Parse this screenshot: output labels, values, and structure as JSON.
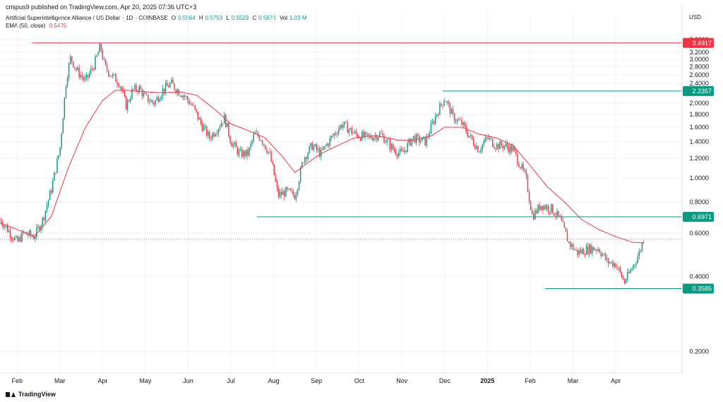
{
  "header": {
    "publisher": "crispus9 published on TradingView.com, Apr 20, 2025 07:36 UTC+3",
    "pair": "Artificial Superintelligence Alliance / US Dollar",
    "interval": "1D",
    "exchange": "COINBASE",
    "open_label": "O",
    "open": "0.5564",
    "high_label": "H",
    "high": "0.5753",
    "low_label": "L",
    "low": "0.5523",
    "close_label": "C",
    "close": "0.5678",
    "vol_label": "Vol",
    "vol": "1.03 M",
    "ema_label": "EMA (50, close)",
    "ema": "0.5475",
    "currency": "USD"
  },
  "brand": {
    "name": "TradingView",
    "icon": "tradingview-logo-icon"
  },
  "colors": {
    "up": "#089981",
    "down": "#f23645",
    "ema": "#f23645",
    "level_high": "#f23645",
    "level_other": "#089981",
    "last_price": "#787b86"
  },
  "chart_data": {
    "type": "candlestick",
    "yscale": "log",
    "ylim": [
      0.175,
      4.0
    ],
    "y_ticks": [
      "0.2000",
      "0.4000",
      "0.6000",
      "0.8000",
      "1.0000",
      "1.2000",
      "1.4000",
      "1.6000",
      "1.8000",
      "2.0000",
      "2.2000",
      "2.4000",
      "2.6000",
      "2.8000",
      "3.0000",
      "3.2000",
      "3.4000",
      "3.6000"
    ],
    "x_ticks": [
      {
        "label": "Feb",
        "month": 1
      },
      {
        "label": "Mar",
        "month": 2
      },
      {
        "label": "Apr",
        "month": 3
      },
      {
        "label": "May",
        "month": 4
      },
      {
        "label": "Jun",
        "month": 5
      },
      {
        "label": "Jul",
        "month": 6
      },
      {
        "label": "Aug",
        "month": 7
      },
      {
        "label": "Sep",
        "month": 8
      },
      {
        "label": "Oct",
        "month": 9
      },
      {
        "label": "Nov",
        "month": 10
      },
      {
        "label": "Dec",
        "month": 11
      },
      {
        "label": "2025",
        "month": 12
      },
      {
        "label": "Feb",
        "month": 13
      },
      {
        "label": "Mar",
        "month": 14
      },
      {
        "label": "Apr",
        "month": 15
      }
    ],
    "x_range_months": [
      0.6,
      16.55
    ],
    "horizontal_levels": [
      {
        "value": "3.4917",
        "num": 3.4917,
        "start_month": 1.35,
        "color": "#f23645"
      },
      {
        "value": "2.2357",
        "num": 2.2357,
        "start_month": 10.95,
        "color": "#089981"
      },
      {
        "value": "0.6971",
        "num": 0.6971,
        "start_month": 6.6,
        "color": "#089981"
      },
      {
        "value": "0.3585",
        "num": 0.3585,
        "start_month": 13.35,
        "color": "#089981"
      }
    ],
    "last_price": 0.5678,
    "price_path": [
      [
        0.6,
        0.68
      ],
      [
        1.0,
        0.55
      ],
      [
        1.15,
        0.6
      ],
      [
        1.4,
        0.58
      ],
      [
        1.6,
        0.68
      ],
      [
        1.8,
        0.9
      ],
      [
        2.0,
        1.3
      ],
      [
        2.15,
        2.5
      ],
      [
        2.25,
        3.05
      ],
      [
        2.4,
        2.7
      ],
      [
        2.6,
        2.45
      ],
      [
        2.8,
        2.85
      ],
      [
        2.95,
        3.4
      ],
      [
        3.05,
        2.8
      ],
      [
        3.2,
        2.6
      ],
      [
        3.4,
        2.4
      ],
      [
        3.55,
        1.95
      ],
      [
        3.7,
        2.25
      ],
      [
        3.85,
        2.3
      ],
      [
        4.0,
        2.1
      ],
      [
        4.2,
        2.0
      ],
      [
        4.4,
        2.25
      ],
      [
        4.6,
        2.4
      ],
      [
        4.75,
        2.25
      ],
      [
        4.9,
        2.15
      ],
      [
        5.1,
        1.95
      ],
      [
        5.3,
        1.65
      ],
      [
        5.5,
        1.45
      ],
      [
        5.7,
        1.6
      ],
      [
        5.85,
        1.75
      ],
      [
        6.0,
        1.4
      ],
      [
        6.2,
        1.25
      ],
      [
        6.4,
        1.25
      ],
      [
        6.55,
        1.5
      ],
      [
        6.7,
        1.45
      ],
      [
        6.9,
        1.25
      ],
      [
        7.0,
        1.05
      ],
      [
        7.1,
        0.85
      ],
      [
        7.3,
        0.88
      ],
      [
        7.5,
        0.85
      ],
      [
        7.7,
        1.2
      ],
      [
        7.9,
        1.35
      ],
      [
        8.1,
        1.25
      ],
      [
        8.35,
        1.45
      ],
      [
        8.6,
        1.65
      ],
      [
        8.9,
        1.5
      ],
      [
        9.2,
        1.45
      ],
      [
        9.5,
        1.5
      ],
      [
        9.8,
        1.3
      ],
      [
        10.0,
        1.25
      ],
      [
        10.25,
        1.45
      ],
      [
        10.55,
        1.4
      ],
      [
        10.8,
        1.8
      ],
      [
        11.0,
        2.1
      ],
      [
        11.2,
        1.75
      ],
      [
        11.4,
        1.65
      ],
      [
        11.6,
        1.45
      ],
      [
        11.8,
        1.3
      ],
      [
        12.0,
        1.45
      ],
      [
        12.2,
        1.35
      ],
      [
        12.4,
        1.35
      ],
      [
        12.6,
        1.3
      ],
      [
        12.9,
        1.0
      ],
      [
        13.05,
        0.7
      ],
      [
        13.25,
        0.78
      ],
      [
        13.5,
        0.75
      ],
      [
        13.7,
        0.68
      ],
      [
        13.9,
        0.55
      ],
      [
        14.1,
        0.5
      ],
      [
        14.4,
        0.52
      ],
      [
        14.6,
        0.52
      ],
      [
        14.8,
        0.46
      ],
      [
        15.0,
        0.45
      ],
      [
        15.2,
        0.38
      ],
      [
        15.4,
        0.44
      ],
      [
        15.55,
        0.5
      ],
      [
        15.65,
        0.568
      ]
    ],
    "ema_path": [
      [
        0.6,
        0.66
      ],
      [
        1.0,
        0.62
      ],
      [
        1.4,
        0.58
      ],
      [
        1.8,
        0.7
      ],
      [
        2.2,
        1.1
      ],
      [
        2.6,
        1.6
      ],
      [
        3.0,
        2.05
      ],
      [
        3.3,
        2.25
      ],
      [
        3.6,
        2.25
      ],
      [
        4.0,
        2.22
      ],
      [
        4.4,
        2.2
      ],
      [
        4.8,
        2.22
      ],
      [
        5.2,
        2.15
      ],
      [
        5.6,
        1.9
      ],
      [
        6.0,
        1.65
      ],
      [
        6.4,
        1.55
      ],
      [
        6.8,
        1.45
      ],
      [
        7.2,
        1.22
      ],
      [
        7.5,
        1.05
      ],
      [
        7.8,
        1.15
      ],
      [
        8.1,
        1.25
      ],
      [
        8.5,
        1.35
      ],
      [
        8.9,
        1.45
      ],
      [
        9.4,
        1.48
      ],
      [
        9.9,
        1.42
      ],
      [
        10.3,
        1.42
      ],
      [
        10.7,
        1.48
      ],
      [
        11.0,
        1.6
      ],
      [
        11.4,
        1.6
      ],
      [
        11.8,
        1.5
      ],
      [
        12.2,
        1.45
      ],
      [
        12.6,
        1.35
      ],
      [
        13.0,
        1.12
      ],
      [
        13.4,
        0.92
      ],
      [
        13.8,
        0.8
      ],
      [
        14.2,
        0.68
      ],
      [
        14.6,
        0.62
      ],
      [
        15.0,
        0.58
      ],
      [
        15.4,
        0.55
      ],
      [
        15.65,
        0.5475
      ]
    ]
  }
}
